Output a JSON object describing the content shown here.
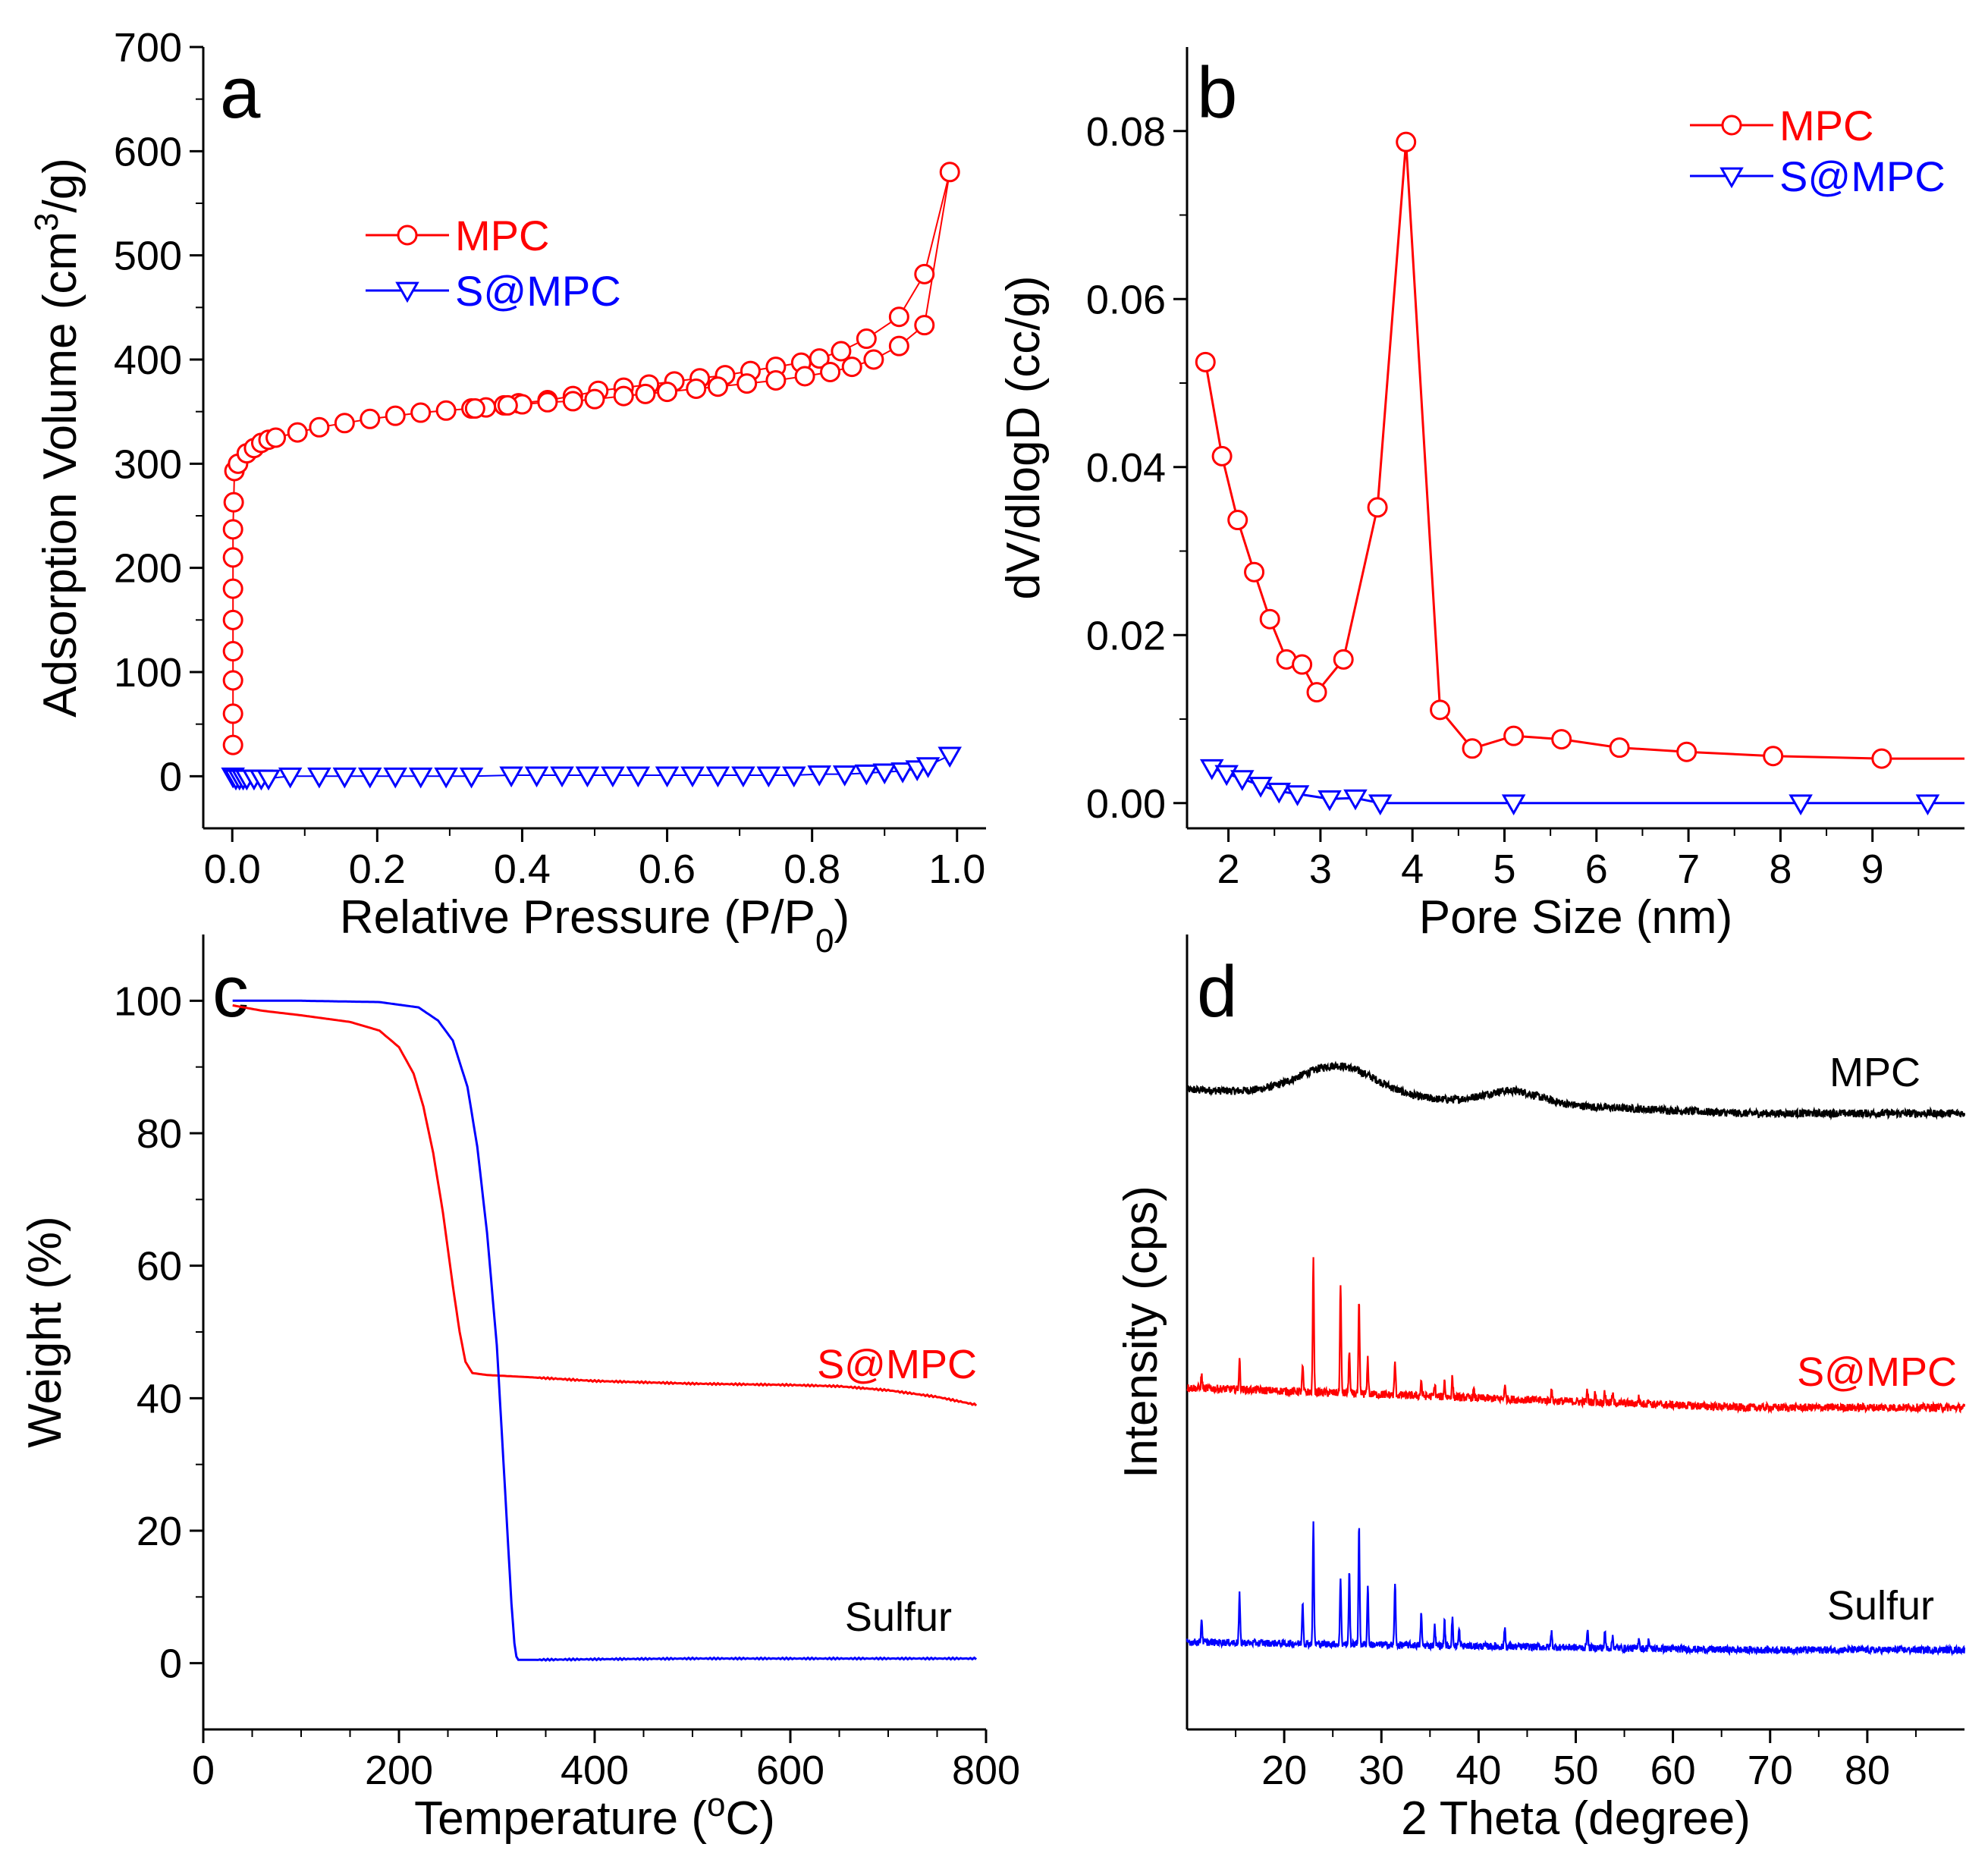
{
  "chart_data": [
    {
      "panel": "a",
      "type": "line",
      "xlabel": "Relative Pressure (P/P",
      "xlabel_sub": "0",
      "xlabel_tail": ")",
      "ylabel": "Adsorption Volume (cm",
      "ylabel_sup": "3",
      "ylabel_tail": "/g)",
      "xlim": [
        -0.04,
        1.04
      ],
      "ylim": [
        -50,
        700
      ],
      "xticks": [
        0.0,
        0.2,
        0.4,
        0.6,
        0.8,
        1.0
      ],
      "xtick_labels": [
        "0.0",
        "0.2",
        "0.4",
        "0.6",
        "0.8",
        "1.0"
      ],
      "yticks": [
        0,
        100,
        200,
        300,
        400,
        500,
        600,
        700
      ],
      "ytick_labels": [
        "0",
        "100",
        "200",
        "300",
        "400",
        "500",
        "600",
        "700"
      ],
      "legend_position": "top-left",
      "series": [
        {
          "name": "MPC",
          "color": "#ff0000",
          "marker": "circle",
          "x": [
            0.001,
            0.001,
            0.001,
            0.001,
            0.001,
            0.001,
            0.001,
            0.001,
            0.002,
            0.003,
            0.008,
            0.02,
            0.03,
            0.04,
            0.05,
            0.06,
            0.09,
            0.12,
            0.155,
            0.19,
            0.225,
            0.26,
            0.295,
            0.33,
            0.35,
            0.375,
            0.395,
            0.435,
            0.47,
            0.505,
            0.54,
            0.575,
            0.61,
            0.645,
            0.68,
            0.715,
            0.75,
            0.785,
            0.81,
            0.84,
            0.875,
            0.92,
            0.955,
            0.99,
            0.955,
            0.92,
            0.885,
            0.855,
            0.825,
            0.79,
            0.75,
            0.71,
            0.67,
            0.64,
            0.6,
            0.57,
            0.54,
            0.5,
            0.47,
            0.435,
            0.4,
            0.38,
            0.335
          ],
          "y": [
            30,
            60,
            92,
            120,
            150,
            180,
            210,
            237,
            263,
            293,
            300,
            310,
            315,
            320,
            323,
            325,
            330,
            335,
            339,
            343,
            346,
            349,
            351,
            353,
            354,
            356,
            358,
            361,
            365,
            370,
            373,
            376,
            379,
            382,
            385,
            389,
            393,
            397,
            401,
            408,
            420,
            441,
            482,
            580,
            433,
            413,
            400,
            393,
            388,
            384,
            380,
            377,
            374,
            372,
            369,
            367,
            365,
            362,
            360,
            359,
            357,
            356,
            353
          ]
        },
        {
          "name": "S@MPC",
          "color": "#0000ff",
          "marker": "triangle-down",
          "x": [
            0.001,
            0.005,
            0.01,
            0.015,
            0.02,
            0.03,
            0.04,
            0.05,
            0.08,
            0.12,
            0.155,
            0.19,
            0.225,
            0.26,
            0.295,
            0.33,
            0.385,
            0.42,
            0.455,
            0.49,
            0.525,
            0.56,
            0.6,
            0.635,
            0.67,
            0.705,
            0.74,
            0.775,
            0.81,
            0.845,
            0.875,
            0.9,
            0.925,
            0.945,
            0.96,
            0.99
          ],
          "y": [
            0,
            -2,
            -2,
            -2,
            -2,
            -2,
            -2,
            -2,
            0,
            0,
            0,
            0,
            0,
            0,
            0,
            0,
            1,
            1,
            1,
            1,
            1,
            1,
            1,
            1,
            1,
            1,
            1,
            1,
            2,
            2,
            3,
            4,
            5,
            7,
            10,
            20
          ]
        }
      ]
    },
    {
      "panel": "b",
      "type": "line",
      "xlabel": "Pore Size (nm)",
      "ylabel": "dV/dlogD (cc/g)",
      "xlim": [
        1.55,
        10.0
      ],
      "ylim": [
        -0.003,
        0.09
      ],
      "xticks": [
        2,
        3,
        4,
        5,
        6,
        7,
        8,
        9
      ],
      "xtick_labels": [
        "2",
        "3",
        "4",
        "5",
        "6",
        "7",
        "8",
        "9"
      ],
      "yticks": [
        0.0,
        0.02,
        0.04,
        0.06,
        0.08
      ],
      "ytick_labels": [
        "0.00",
        "0.02",
        "0.04",
        "0.06",
        "0.08"
      ],
      "legend_position": "top-right",
      "series": [
        {
          "name": "MPC",
          "color": "#ff0000",
          "marker": "circle",
          "x": [
            1.75,
            1.93,
            2.1,
            2.28,
            2.45,
            2.63,
            2.8,
            2.96,
            3.25,
            3.62,
            3.93,
            4.3,
            4.65,
            5.1,
            5.62,
            6.25,
            6.98,
            7.92,
            9.1,
            10.0
          ],
          "y": [
            0.0525,
            0.0413,
            0.0337,
            0.0275,
            0.0219,
            0.0171,
            0.0165,
            0.0132,
            0.0171,
            0.0352,
            0.0787,
            0.0111,
            0.0065,
            0.008,
            0.0076,
            0.0066,
            0.0061,
            0.0056,
            0.0053,
            0.0053
          ]
        },
        {
          "name": "S@MPC",
          "color": "#0000ff",
          "marker": "triangle-down",
          "x": [
            1.82,
            1.98,
            2.15,
            2.35,
            2.55,
            2.75,
            3.1,
            3.38,
            3.65,
            5.1,
            8.22,
            9.6,
            10.0
          ],
          "y": [
            0.0042,
            0.0035,
            0.0029,
            0.0021,
            0.0014,
            0.0011,
            0.0005,
            0.0006,
            0.0,
            0.0,
            0.0,
            0.0,
            0.0
          ]
        }
      ]
    },
    {
      "panel": "c",
      "type": "line",
      "xlabel": "Temperature (",
      "xlabel_sup": "o",
      "xlabel_tail": "C)",
      "ylabel": "Weight (%)",
      "xlim": [
        0,
        800
      ],
      "ylim": [
        -10,
        110
      ],
      "xticks": [
        0,
        200,
        400,
        600,
        800
      ],
      "xtick_labels": [
        "0",
        "200",
        "400",
        "600",
        "800"
      ],
      "yticks": [
        0,
        20,
        40,
        60,
        80,
        100
      ],
      "ytick_labels": [
        "0",
        "20",
        "40",
        "60",
        "80",
        "100"
      ],
      "series": [
        {
          "name": "S@MPC",
          "color": "#ff0000",
          "x": [
            30,
            60,
            100,
            150,
            180,
            200,
            215,
            225,
            235,
            245,
            255,
            262,
            268,
            275,
            290,
            330,
            400,
            500,
            600,
            650,
            700,
            750,
            790
          ],
          "y": [
            99.3,
            98.5,
            97.8,
            96.8,
            95.5,
            93.0,
            89.0,
            84.0,
            77.0,
            68.0,
            57.0,
            50.0,
            45.5,
            43.8,
            43.5,
            43.2,
            42.6,
            42.2,
            42.0,
            41.8,
            41.2,
            40.2,
            39.0
          ]
        },
        {
          "name": "Sulfur",
          "color": "#0000ff",
          "x": [
            30,
            100,
            180,
            220,
            240,
            255,
            270,
            280,
            290,
            300,
            305,
            310,
            315,
            318,
            320,
            322,
            330,
            400,
            500,
            600,
            700,
            790
          ],
          "y": [
            100.0,
            100.0,
            99.8,
            99.0,
            97.0,
            94.0,
            87.0,
            78.0,
            65.0,
            48.0,
            35.0,
            22.0,
            9.0,
            3.0,
            1.0,
            0.5,
            0.5,
            0.6,
            0.7,
            0.7,
            0.7,
            0.7
          ]
        }
      ],
      "annotations": [
        {
          "text": "S@MPC",
          "color": "#ff0000"
        },
        {
          "text": "Sulfur",
          "color": "#000000"
        }
      ]
    },
    {
      "panel": "d",
      "type": "line",
      "xlabel": "2 Theta (degree)",
      "ylabel": "Intensity (cps)",
      "xlim": [
        10,
        90
      ],
      "xticks": [
        20,
        30,
        40,
        50,
        60,
        70,
        80
      ],
      "xtick_labels": [
        "20",
        "30",
        "40",
        "50",
        "60",
        "70",
        "80"
      ],
      "ylim": [
        0,
        100
      ],
      "series": [
        {
          "name": "MPC",
          "color": "#000000",
          "baseline": 80.5,
          "broad_peaks": [
            {
              "center": 25.5,
              "height": 3.8,
              "width": 5.5
            },
            {
              "center": 43.5,
              "height": 1.6,
              "width": 4.0
            }
          ],
          "noise": 0.5,
          "decay_to": 77.5
        },
        {
          "name": "S@MPC",
          "color": "#ff0000",
          "baseline": 43.0,
          "peaks_x": [
            11.5,
            15.4,
            21.9,
            23.0,
            25.8,
            26.7,
            27.7,
            28.6,
            31.4,
            34.1,
            35.5,
            36.5,
            37.3,
            39.5,
            42.7,
            47.5,
            51.2,
            52.0,
            53.0,
            53.8,
            56.5,
            57.5
          ],
          "peaks_h": [
            1.6,
            3.7,
            3.2,
            16.5,
            14.0,
            5.5,
            11.5,
            4.5,
            4.2,
            2.0,
            1.5,
            2.0,
            2.5,
            1.0,
            1.8,
            1.4,
            1.5,
            1.2,
            1.3,
            1.1,
            0.9,
            0.8
          ],
          "noise": 0.5,
          "decay_to": 40.5
        },
        {
          "name": "Sulfur",
          "color": "#0000ff",
          "baseline": 11.0,
          "peaks_x": [
            11.5,
            15.4,
            21.9,
            23.0,
            25.8,
            26.7,
            27.7,
            28.6,
            31.4,
            34.1,
            35.5,
            36.5,
            37.3,
            38.0,
            42.7,
            47.5,
            51.2,
            53.0,
            53.8,
            56.5,
            57.5
          ],
          "peaks_h": [
            3.0,
            6.0,
            5.5,
            15.0,
            8.5,
            9.0,
            15.0,
            7.5,
            8.0,
            4.0,
            2.5,
            3.0,
            3.5,
            2.0,
            2.5,
            2.0,
            2.5,
            2.0,
            1.5,
            1.5,
            1.2
          ],
          "noise": 0.45,
          "decay_to": 10.0
        }
      ],
      "annotations": [
        {
          "text": "MPC",
          "color": "#000000"
        },
        {
          "text": "S@MPC",
          "color": "#ff0000"
        },
        {
          "text": "Sulfur",
          "color": "#000000"
        }
      ]
    }
  ]
}
